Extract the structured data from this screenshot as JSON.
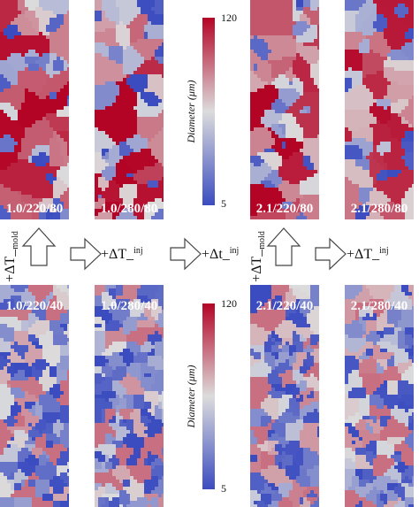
{
  "panels_top": [
    "1.0/220/80",
    "1.0/280/80",
    "2.1/220/80",
    "2.1/280/80"
  ],
  "panels_bottom": [
    "1.0/220/40",
    "1.0/280/40",
    "2.1/220/40",
    "2.1/280/40"
  ],
  "colorbar": {
    "label": "Diameter (μm)",
    "max": "120",
    "min": "5"
  },
  "arrows": [
    {
      "main": "+ΔT_",
      "sub": "mold"
    },
    {
      "main": "+ΔT_",
      "sub": "inj"
    },
    {
      "main": "+Δt_",
      "sub": "inj"
    },
    {
      "main": "+ΔT_",
      "sub": "mold"
    },
    {
      "main": "+ΔT_",
      "sub": "inj"
    }
  ]
}
